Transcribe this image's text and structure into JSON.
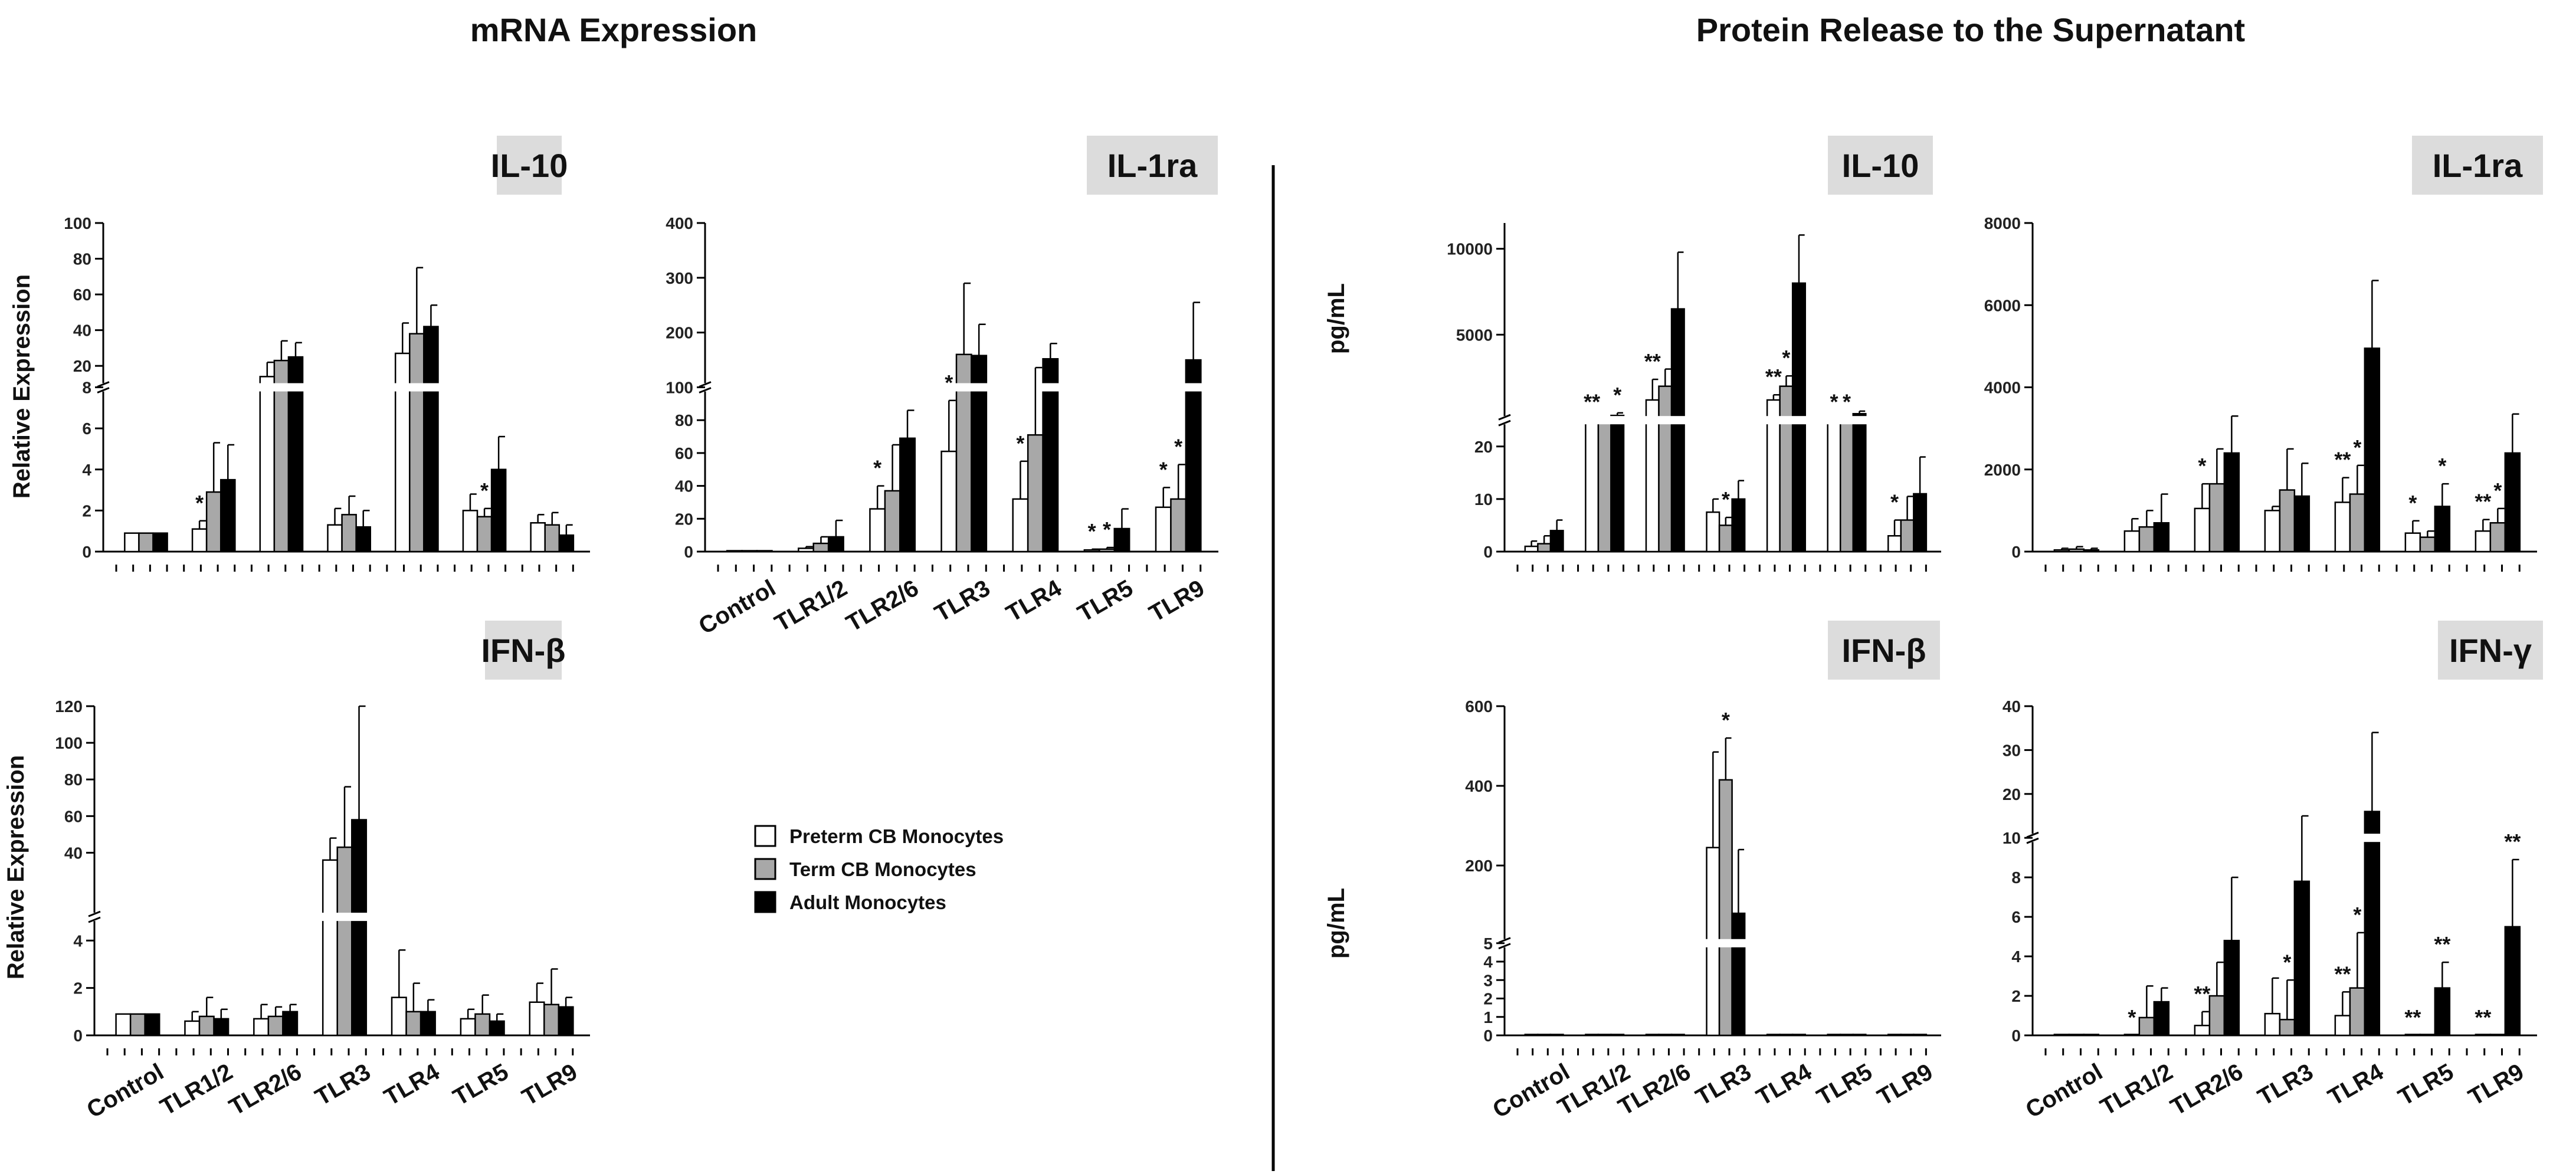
{
  "figure": {
    "left_title": "mRNA Expression",
    "right_title": "Protein Release to the Supernatant"
  },
  "legend": [
    {
      "label": "Preterm CB Monocytes",
      "color": "#ffffff"
    },
    {
      "label": "Term CB Monocytes",
      "color": "#a8a8a8"
    },
    {
      "label": "Adult Monocytes",
      "color": "#000000"
    }
  ],
  "chart_data": [
    {
      "id": "mrna_il10",
      "type": "bar",
      "title": "IL-10",
      "ylabel": "Relative Expression",
      "categories": [
        "Control",
        "TLR1/2",
        "TLR2/6",
        "TLR3",
        "TLR4",
        "TLR5",
        "TLR9"
      ],
      "show_xlabels": false,
      "series": [
        {
          "name": "Preterm CB Monocytes",
          "values": [
            0.9,
            1.1,
            14,
            1.3,
            27,
            2.0,
            1.4
          ],
          "errors": [
            0,
            0.4,
            8,
            0.8,
            17,
            0.8,
            0.4
          ]
        },
        {
          "name": "Term CB Monocytes",
          "values": [
            0.9,
            2.9,
            23,
            1.8,
            38,
            1.7,
            1.3
          ],
          "errors": [
            0,
            2.4,
            11,
            0.9,
            37,
            0.4,
            0.6
          ]
        },
        {
          "name": "Adult Monocytes",
          "values": [
            0.9,
            3.5,
            25,
            1.2,
            42,
            4.0,
            0.8
          ],
          "errors": [
            0,
            1.7,
            8,
            0.8,
            12,
            1.6,
            0.5
          ]
        }
      ],
      "segments": [
        {
          "min": 0,
          "max": 8,
          "ticks": [
            0,
            2,
            4,
            6,
            8
          ],
          "frac": 0.5
        },
        {
          "min": 8,
          "max": 100,
          "ticks": [
            20,
            40,
            60,
            80,
            100
          ],
          "frac": 0.5
        }
      ],
      "stars": [
        {
          "cat": 1,
          "series": 0,
          "text": "*"
        },
        {
          "cat": 5,
          "series": 1,
          "text": "*"
        }
      ]
    },
    {
      "id": "mrna_il1ra",
      "type": "bar",
      "title": "IL-1ra",
      "ylabel": "",
      "categories": [
        "Control",
        "TLR1/2",
        "TLR2/6",
        "TLR3",
        "TLR4",
        "TLR5",
        "TLR9"
      ],
      "show_xlabels": true,
      "series": [
        {
          "name": "Preterm CB Monocytes",
          "values": [
            0.5,
            2,
            26,
            61,
            32,
            1,
            27
          ],
          "errors": [
            0,
            1,
            14,
            31,
            23,
            0.5,
            12
          ]
        },
        {
          "name": "Term CB Monocytes",
          "values": [
            0.5,
            5,
            37,
            160,
            71,
            1.5,
            32
          ],
          "errors": [
            0,
            4,
            28,
            130,
            65,
            1,
            21
          ]
        },
        {
          "name": "Adult Monocytes",
          "values": [
            0.5,
            9,
            69,
            158,
            152,
            14,
            150
          ],
          "errors": [
            0,
            10,
            17,
            57,
            28,
            12,
            105
          ]
        }
      ],
      "segments": [
        {
          "min": 0,
          "max": 100,
          "ticks": [
            0,
            20,
            40,
            60,
            80,
            100
          ],
          "frac": 0.5
        },
        {
          "min": 100,
          "max": 400,
          "ticks": [
            200,
            300,
            400
          ],
          "frac": 0.5
        }
      ],
      "stars": [
        {
          "cat": 2,
          "series": 0,
          "text": "*"
        },
        {
          "cat": 3,
          "series": 0,
          "text": "*"
        },
        {
          "cat": 4,
          "series": 0,
          "text": "*"
        },
        {
          "cat": 5,
          "series": 0,
          "text": "*"
        },
        {
          "cat": 5,
          "series": 1,
          "text": "*"
        },
        {
          "cat": 6,
          "series": 0,
          "text": "*"
        },
        {
          "cat": 6,
          "series": 1,
          "text": "*"
        }
      ]
    },
    {
      "id": "mrna_ifnb",
      "type": "bar",
      "title": "IFN-β",
      "ylabel": "Relative Expression",
      "categories": [
        "Control",
        "TLR1/2",
        "TLR2/6",
        "TLR3",
        "TLR4",
        "TLR5",
        "TLR9"
      ],
      "show_xlabels": true,
      "series": [
        {
          "name": "Preterm CB Monocytes",
          "values": [
            0.9,
            0.6,
            0.7,
            36,
            1.6,
            0.7,
            1.4
          ],
          "errors": [
            0,
            0.4,
            0.6,
            12,
            2.0,
            0.4,
            0.8
          ]
        },
        {
          "name": "Term CB Monocytes",
          "values": [
            0.9,
            0.8,
            0.8,
            43,
            1.0,
            0.9,
            1.3
          ],
          "errors": [
            0,
            0.8,
            0.4,
            33,
            1.2,
            0.8,
            1.5
          ]
        },
        {
          "name": "Adult Monocytes",
          "values": [
            0.9,
            0.7,
            1.0,
            58,
            1.0,
            0.6,
            1.2
          ],
          "errors": [
            0,
            0.4,
            0.3,
            62,
            0.5,
            0.3,
            0.4
          ]
        }
      ],
      "segments": [
        {
          "min": 0,
          "max": 5,
          "ticks": [
            0,
            2,
            4
          ],
          "frac": 0.36
        },
        {
          "min": 5,
          "max": 120,
          "ticks": [
            40,
            60,
            80,
            100,
            120
          ],
          "frac": 0.64
        }
      ],
      "stars": []
    },
    {
      "id": "prot_il10",
      "type": "bar",
      "title": "IL-10",
      "ylabel": "pg/mL",
      "categories": [
        "Control",
        "TLR1/2",
        "TLR2/6",
        "TLR3",
        "TLR4",
        "TLR5",
        "TLR9"
      ],
      "show_xlabels": false,
      "series": [
        {
          "name": "Preterm CB Monocytes",
          "values": [
            1,
            50,
            1200,
            7.5,
            1200,
            50,
            3
          ],
          "errors": [
            1,
            0,
            1200,
            2.5,
            300,
            0,
            3
          ]
        },
        {
          "name": "Term CB Monocytes",
          "values": [
            1.5,
            50,
            2000,
            5,
            2000,
            50,
            6
          ],
          "errors": [
            1.5,
            0,
            1000,
            1.5,
            600,
            0,
            4.5
          ]
        },
        {
          "name": "Adult Monocytes",
          "values": [
            4,
            300,
            6500,
            10,
            8000,
            400,
            11
          ],
          "errors": [
            2,
            150,
            3300,
            3.5,
            2800,
            150,
            7
          ]
        }
      ],
      "segments": [
        {
          "min": 0,
          "max": 25,
          "ticks": [
            0,
            10,
            20
          ],
          "frac": 0.4
        },
        {
          "min": 25,
          "max": 11500,
          "ticks": [
            5000,
            10000
          ],
          "frac": 0.6
        }
      ],
      "stars": [
        {
          "cat": 1,
          "series": 0,
          "text": "**"
        },
        {
          "cat": 1,
          "series": 2,
          "text": "*"
        },
        {
          "cat": 2,
          "series": 0,
          "text": "**"
        },
        {
          "cat": 3,
          "series": 1,
          "text": "*"
        },
        {
          "cat": 4,
          "series": 0,
          "text": "**"
        },
        {
          "cat": 4,
          "series": 1,
          "text": "*"
        },
        {
          "cat": 5,
          "series": 0,
          "text": "*"
        },
        {
          "cat": 5,
          "series": 1,
          "text": "*"
        },
        {
          "cat": 6,
          "series": 0,
          "text": "*"
        }
      ]
    },
    {
      "id": "prot_il1ra",
      "type": "bar",
      "title": "IL-1ra",
      "ylabel": "",
      "categories": [
        "Control",
        "TLR1/2",
        "TLR2/6",
        "TLR3",
        "TLR4",
        "TLR5",
        "TLR9"
      ],
      "show_xlabels": false,
      "series": [
        {
          "name": "Preterm CB Monocytes",
          "values": [
            40,
            500,
            1050,
            1000,
            1200,
            450,
            500
          ],
          "errors": [
            40,
            300,
            600,
            100,
            600,
            300,
            280
          ]
        },
        {
          "name": "Term CB Monocytes",
          "values": [
            60,
            600,
            1650,
            1500,
            1400,
            350,
            700
          ],
          "errors": [
            60,
            400,
            850,
            1000,
            700,
            150,
            350
          ]
        },
        {
          "name": "Adult Monocytes",
          "values": [
            40,
            700,
            2400,
            1350,
            4950,
            1100,
            2400
          ],
          "errors": [
            40,
            700,
            900,
            800,
            1650,
            550,
            950
          ]
        }
      ],
      "segments": [
        {
          "min": 0,
          "max": 8000,
          "ticks": [
            0,
            2000,
            4000,
            6000,
            8000
          ],
          "frac": 1.0
        }
      ],
      "stars": [
        {
          "cat": 2,
          "series": 0,
          "text": "*"
        },
        {
          "cat": 4,
          "series": 0,
          "text": "**"
        },
        {
          "cat": 4,
          "series": 1,
          "text": "*"
        },
        {
          "cat": 5,
          "series": 0,
          "text": "*"
        },
        {
          "cat": 5,
          "series": 2,
          "text": "*"
        },
        {
          "cat": 6,
          "series": 0,
          "text": "**"
        },
        {
          "cat": 6,
          "series": 1,
          "text": "*"
        }
      ]
    },
    {
      "id": "prot_ifnb",
      "type": "bar",
      "title": "IFN-β",
      "ylabel": "pg/mL",
      "categories": [
        "Control",
        "TLR1/2",
        "TLR2/6",
        "TLR3",
        "TLR4",
        "TLR5",
        "TLR9"
      ],
      "show_xlabels": true,
      "series": [
        {
          "name": "Preterm CB Monocytes",
          "values": [
            0,
            0,
            0,
            245,
            0,
            0,
            0
          ],
          "errors": [
            0,
            0,
            0,
            240,
            0,
            0,
            0
          ]
        },
        {
          "name": "Term CB Monocytes",
          "values": [
            0,
            0,
            0,
            415,
            0,
            0,
            0
          ],
          "errors": [
            0,
            0,
            0,
            105,
            0,
            0,
            0
          ]
        },
        {
          "name": "Adult Monocytes",
          "values": [
            0,
            0,
            0,
            80,
            0,
            0,
            0
          ],
          "errors": [
            0,
            0,
            0,
            160,
            0,
            0,
            0
          ]
        }
      ],
      "segments": [
        {
          "min": 0,
          "max": 5,
          "ticks": [
            0,
            1,
            2,
            3,
            4,
            5
          ],
          "frac": 0.28
        },
        {
          "min": 5,
          "max": 600,
          "ticks": [
            200,
            400,
            600
          ],
          "frac": 0.72
        }
      ],
      "stars": [
        {
          "cat": 3,
          "series": 1,
          "text": "*"
        }
      ]
    },
    {
      "id": "prot_ifng",
      "type": "bar",
      "title": "IFN-γ",
      "ylabel": "",
      "categories": [
        "Control",
        "TLR1/2",
        "TLR2/6",
        "TLR3",
        "TLR4",
        "TLR5",
        "TLR9"
      ],
      "show_xlabels": true,
      "series": [
        {
          "name": "Preterm CB Monocytes",
          "values": [
            0,
            0,
            0.5,
            1.1,
            1.0,
            0,
            0
          ],
          "errors": [
            0,
            0,
            0.7,
            1.8,
            1.2,
            0,
            0
          ]
        },
        {
          "name": "Term CB Monocytes",
          "values": [
            0,
            0.9,
            2.0,
            0.8,
            2.4,
            0,
            0
          ],
          "errors": [
            0,
            1.6,
            1.7,
            2.0,
            2.8,
            0,
            0
          ]
        },
        {
          "name": "Adult Monocytes",
          "values": [
            0,
            1.7,
            4.8,
            7.8,
            16,
            2.4,
            5.5
          ],
          "errors": [
            0,
            0.7,
            3.2,
            7.2,
            18,
            1.3,
            3.4
          ]
        }
      ],
      "segments": [
        {
          "min": 0,
          "max": 10,
          "ticks": [
            0,
            2,
            4,
            6,
            8,
            10
          ],
          "frac": 0.6
        },
        {
          "min": 10,
          "max": 40,
          "ticks": [
            20,
            30,
            40
          ],
          "frac": 0.4
        }
      ],
      "stars": [
        {
          "cat": 1,
          "series": 0,
          "text": "*"
        },
        {
          "cat": 2,
          "series": 0,
          "text": "**"
        },
        {
          "cat": 3,
          "series": 1,
          "text": "*"
        },
        {
          "cat": 4,
          "series": 0,
          "text": "**"
        },
        {
          "cat": 4,
          "series": 1,
          "text": "*"
        },
        {
          "cat": 5,
          "series": 0,
          "text": "**"
        },
        {
          "cat": 5,
          "series": 2,
          "text": "**"
        },
        {
          "cat": 6,
          "series": 0,
          "text": "**"
        },
        {
          "cat": 6,
          "series": 2,
          "text": "**"
        }
      ]
    }
  ]
}
